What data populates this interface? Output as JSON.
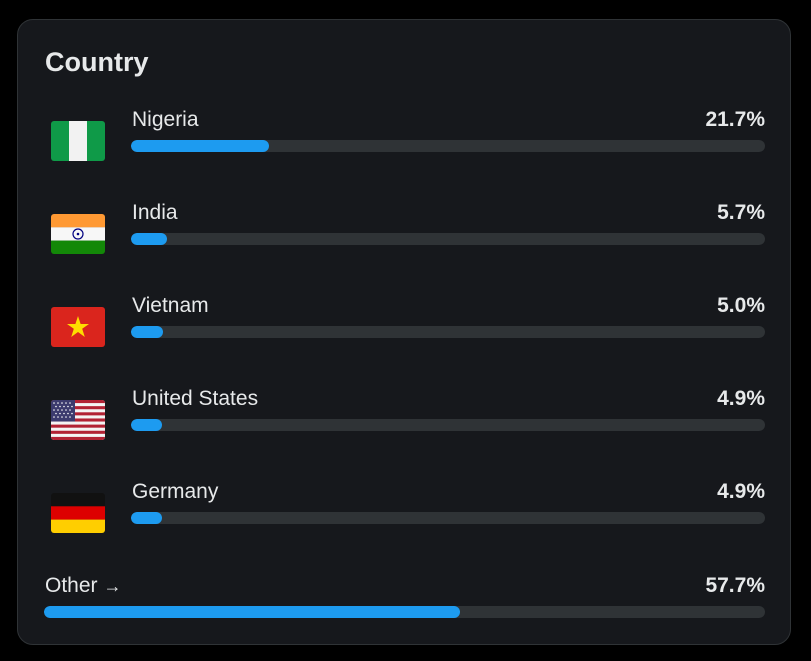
{
  "title": "Country",
  "countries": [
    {
      "name": "Nigeria",
      "percent_label": "21.7%",
      "value": 21.7,
      "flag": "nigeria-flag-icon"
    },
    {
      "name": "India",
      "percent_label": "5.7%",
      "value": 5.7,
      "flag": "india-flag-icon"
    },
    {
      "name": "Vietnam",
      "percent_label": "5.0%",
      "value": 5.0,
      "flag": "vietnam-flag-icon"
    },
    {
      "name": "United States",
      "percent_label": "4.9%",
      "value": 4.9,
      "flag": "us-flag-icon"
    },
    {
      "name": "Germany",
      "percent_label": "4.9%",
      "value": 4.9,
      "flag": "germany-flag-icon"
    }
  ],
  "other": {
    "label": "Other",
    "arrow": "→",
    "percent_label": "57.7%",
    "value": 57.7
  },
  "colors": {
    "bar_fill": "#1d9bf0",
    "bar_track": "#2f3336",
    "card_bg": "#16181c"
  }
}
